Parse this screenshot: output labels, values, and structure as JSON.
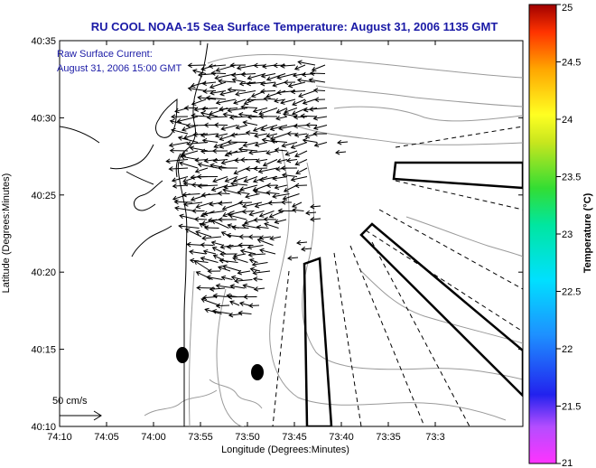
{
  "title": "RU COOL  NOAA-15  Sea Surface Temperature:  August 31, 2006 1135 GMT",
  "annotation": {
    "line1": "Raw Surface Current:",
    "line2": "August 31, 2006 15:00 GMT"
  },
  "axes": {
    "xlabel": "Longitude (Degrees:Minutes)",
    "ylabel": "Latitude (Degrees:Minutes)",
    "xticks": [
      "74:10",
      "74:05",
      "74:00",
      "73:55",
      "73:50",
      "73:45",
      "73:40",
      "73:35",
      "73:3"
    ],
    "yticks": [
      "40:35",
      "40:30",
      "40:25",
      "40:20",
      "40:15",
      "40:10"
    ]
  },
  "colorbar": {
    "label": "Temperature (°C)",
    "ticks": [
      "25",
      "24.5",
      "24",
      "23.5",
      "23",
      "22.5",
      "22",
      "21.5",
      "21"
    ],
    "range": [
      21,
      25
    ]
  },
  "scale_bar": {
    "label": "50 cm/s"
  },
  "colors": {
    "title": "#1a1aa6",
    "land_line": "#000000",
    "bathymetry": "#9a9a9a",
    "vectors": "#000000"
  }
}
